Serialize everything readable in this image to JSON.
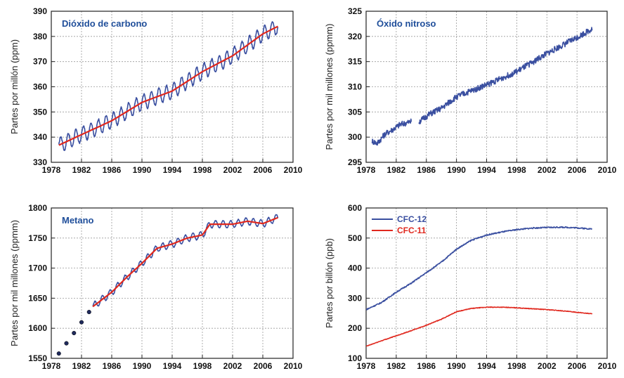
{
  "chart_data": [
    {
      "id": "co2",
      "type": "line",
      "title": "Dióxido de carbono",
      "xlabel": "",
      "ylabel": "Partes por millón (ppm)",
      "xlim": [
        1978,
        2010
      ],
      "ylim": [
        330,
        390
      ],
      "xticks": [
        1978,
        1982,
        1986,
        1990,
        1994,
        1998,
        2002,
        2006,
        2010
      ],
      "yticks": [
        330,
        340,
        350,
        360,
        370,
        380,
        390
      ],
      "grid": true,
      "series": [
        {
          "style": "seasonal",
          "color": "#3a4fa0",
          "amplitude": 3,
          "x": [
            1979,
            1982,
            1986,
            1990,
            1994,
            1998,
            2002,
            2006,
            2008
          ],
          "y": [
            336.8,
            341.0,
            346.5,
            353.8,
            358.3,
            366.0,
            372.3,
            381.0,
            384.0
          ]
        },
        {
          "style": "trend",
          "color": "#e0281e",
          "x": [
            1979,
            1982,
            1986,
            1990,
            1994,
            1998,
            2002,
            2006,
            2008
          ],
          "y": [
            336.8,
            341.0,
            346.5,
            353.8,
            358.3,
            366.0,
            372.3,
            381.0,
            384.0
          ]
        }
      ]
    },
    {
      "id": "n2o",
      "type": "line",
      "title": "Óxido nitroso",
      "xlabel": "",
      "ylabel": "Partes por mil millones (ppmm)",
      "xlim": [
        1978,
        2010
      ],
      "ylim": [
        295,
        325
      ],
      "xticks": [
        1978,
        1982,
        1986,
        1990,
        1994,
        1998,
        2002,
        2006,
        2010
      ],
      "yticks": [
        295,
        300,
        305,
        310,
        315,
        320,
        325
      ],
      "grid": true,
      "series": [
        {
          "style": "noisy",
          "color": "#3a4fa0",
          "amplitude": 0.6,
          "segments": [
            {
              "x": [
                1978.8,
                1979.5,
                1980.5,
                1981.5,
                1982.5,
                1983.5,
                1984.0
              ],
              "y": [
                299.2,
                298.8,
                300.6,
                301.5,
                302.5,
                302.9,
                303.1
              ]
            },
            {
              "x": [
                1985.0,
                1986.5,
                1988.0,
                1990.0,
                1994.0,
                1998.0,
                2002.0,
                2006.0,
                2008.0
              ],
              "y": [
                303.0,
                304.6,
                305.7,
                308.0,
                310.4,
                313.0,
                316.6,
                319.8,
                321.5
              ]
            }
          ]
        }
      ]
    },
    {
      "id": "ch4",
      "type": "line",
      "title": "Metano",
      "xlabel": "",
      "ylabel": "Partes por mil millones (ppmm)",
      "xlim": [
        1978,
        2010
      ],
      "ylim": [
        1550,
        1800
      ],
      "xticks": [
        1978,
        1982,
        1986,
        1990,
        1994,
        1998,
        2002,
        2006,
        2010
      ],
      "yticks": [
        1550,
        1600,
        1650,
        1700,
        1750,
        1800
      ],
      "grid": true,
      "series": [
        {
          "style": "points",
          "color": "#1f2a5c",
          "x": [
            1979,
            1980,
            1981,
            1982,
            1983
          ],
          "y": [
            1558,
            1575,
            1592,
            1610,
            1627
          ]
        },
        {
          "style": "seasonal",
          "color": "#3a4fa0",
          "amplitude": 6,
          "x": [
            1983.5,
            1986,
            1988,
            1990,
            1992,
            1994,
            1996,
            1998,
            1999,
            2002,
            2004,
            2006,
            2008
          ],
          "y": [
            1636,
            1660,
            1685,
            1708,
            1733,
            1740,
            1750,
            1755,
            1773,
            1773,
            1778,
            1774,
            1784
          ]
        },
        {
          "style": "trend",
          "color": "#e0281e",
          "x": [
            1983.5,
            1986,
            1988,
            1990,
            1992,
            1994,
            1996,
            1998,
            1999,
            2002,
            2004,
            2006,
            2008
          ],
          "y": [
            1636,
            1660,
            1685,
            1708,
            1733,
            1740,
            1750,
            1755,
            1773,
            1773,
            1778,
            1774,
            1784
          ]
        }
      ]
    },
    {
      "id": "cfc",
      "type": "line",
      "title": "",
      "xlabel": "",
      "ylabel": "Partes por billón (ppb)",
      "xlim": [
        1978,
        2010
      ],
      "ylim": [
        100,
        600
      ],
      "xticks": [
        1978,
        1982,
        1986,
        1990,
        1994,
        1998,
        2002,
        2006,
        2010
      ],
      "yticks": [
        100,
        200,
        300,
        400,
        500,
        600
      ],
      "grid": true,
      "legend": "top-left",
      "series": [
        {
          "name": "CFC-12",
          "style": "noisy",
          "color": "#3a4fa0",
          "amplitude": 2,
          "x": [
            1978,
            1980,
            1982,
            1984,
            1986,
            1988,
            1990,
            1992,
            1994,
            1996,
            1998,
            2000,
            2002,
            2004,
            2006,
            2008
          ],
          "y": [
            262,
            285,
            320,
            350,
            385,
            420,
            463,
            493,
            510,
            520,
            528,
            533,
            535,
            536,
            534,
            530
          ]
        },
        {
          "name": "CFC-11",
          "style": "noisy",
          "color": "#e0281e",
          "amplitude": 1,
          "x": [
            1978,
            1980,
            1982,
            1984,
            1986,
            1988,
            1990,
            1992,
            1994,
            1996,
            1998,
            2000,
            2002,
            2004,
            2006,
            2008
          ],
          "y": [
            140,
            158,
            175,
            192,
            210,
            230,
            255,
            266,
            270,
            270,
            268,
            265,
            262,
            258,
            253,
            248
          ]
        }
      ]
    }
  ]
}
